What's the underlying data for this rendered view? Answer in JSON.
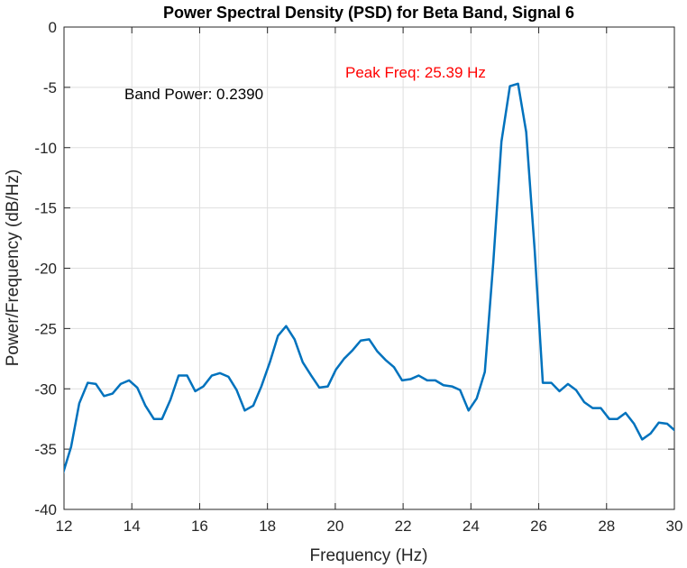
{
  "chart_data": {
    "type": "line",
    "title": "Power Spectral Density (PSD) for Beta Band, Signal 6",
    "x_label": "Frequency (Hz)",
    "y_label": "Power/Frequency (dB/Hz)",
    "annotations": [
      {
        "text": "Band Power: 0.2390",
        "color": "#000000"
      },
      {
        "text": "Peak Freq: 25.39 Hz",
        "color": "#ff0000"
      }
    ],
    "x": [
      11.96,
      12.21,
      12.45,
      12.7,
      12.94,
      13.18,
      13.43,
      13.67,
      13.92,
      14.16,
      14.4,
      14.65,
      14.89,
      15.14,
      15.38,
      15.63,
      15.87,
      16.11,
      16.36,
      16.6,
      16.85,
      17.09,
      17.33,
      17.58,
      17.82,
      18.07,
      18.31,
      18.55,
      18.8,
      19.04,
      19.29,
      19.53,
      19.78,
      20.02,
      20.26,
      20.51,
      20.75,
      21.0,
      21.24,
      21.48,
      21.73,
      21.97,
      22.22,
      22.46,
      22.71,
      22.95,
      23.19,
      23.44,
      23.68,
      23.93,
      24.17,
      24.41,
      24.66,
      24.9,
      25.15,
      25.39,
      25.63,
      25.88,
      26.12,
      26.37,
      26.61,
      26.86,
      27.1,
      27.34,
      27.59,
      27.83,
      28.08,
      28.32,
      28.56,
      28.81,
      29.05,
      29.3,
      29.54,
      29.79,
      30.03
    ],
    "series": [
      {
        "name": "PSD",
        "color": "#0072bd",
        "values": [
          -37.1,
          -34.8,
          -31.2,
          -29.5,
          -29.6,
          -30.6,
          -30.4,
          -29.6,
          -29.3,
          -29.9,
          -31.4,
          -32.5,
          -32.5,
          -30.9,
          -28.9,
          -28.9,
          -30.2,
          -29.8,
          -28.9,
          -28.7,
          -29.0,
          -30.1,
          -31.8,
          -31.4,
          -29.8,
          -27.8,
          -25.6,
          -24.8,
          -25.9,
          -27.8,
          -28.9,
          -29.9,
          -29.8,
          -28.4,
          -27.5,
          -26.8,
          -26.0,
          -25.9,
          -26.9,
          -27.6,
          -28.2,
          -29.3,
          -29.2,
          -28.9,
          -29.3,
          -29.3,
          -29.7,
          -29.8,
          -30.1,
          -31.8,
          -30.8,
          -28.6,
          -19.5,
          -9.5,
          -4.9,
          -4.7,
          -8.7,
          -18.5,
          -29.5,
          -29.5,
          -30.2,
          -29.6,
          -30.1,
          -31.1,
          -31.6,
          -31.6,
          -32.5,
          -32.5,
          -32.0,
          -32.9,
          -34.2,
          -33.7,
          -32.8,
          -32.9,
          -33.5
        ]
      }
    ],
    "xlim": [
      12,
      30
    ],
    "xticks": [
      12,
      14,
      16,
      18,
      20,
      22,
      24,
      26,
      28,
      30
    ],
    "ylim": [
      -40,
      0
    ],
    "yticks": [
      0,
      -5,
      -10,
      -15,
      -20,
      -25,
      -30,
      -35,
      -40
    ],
    "grid": true
  }
}
